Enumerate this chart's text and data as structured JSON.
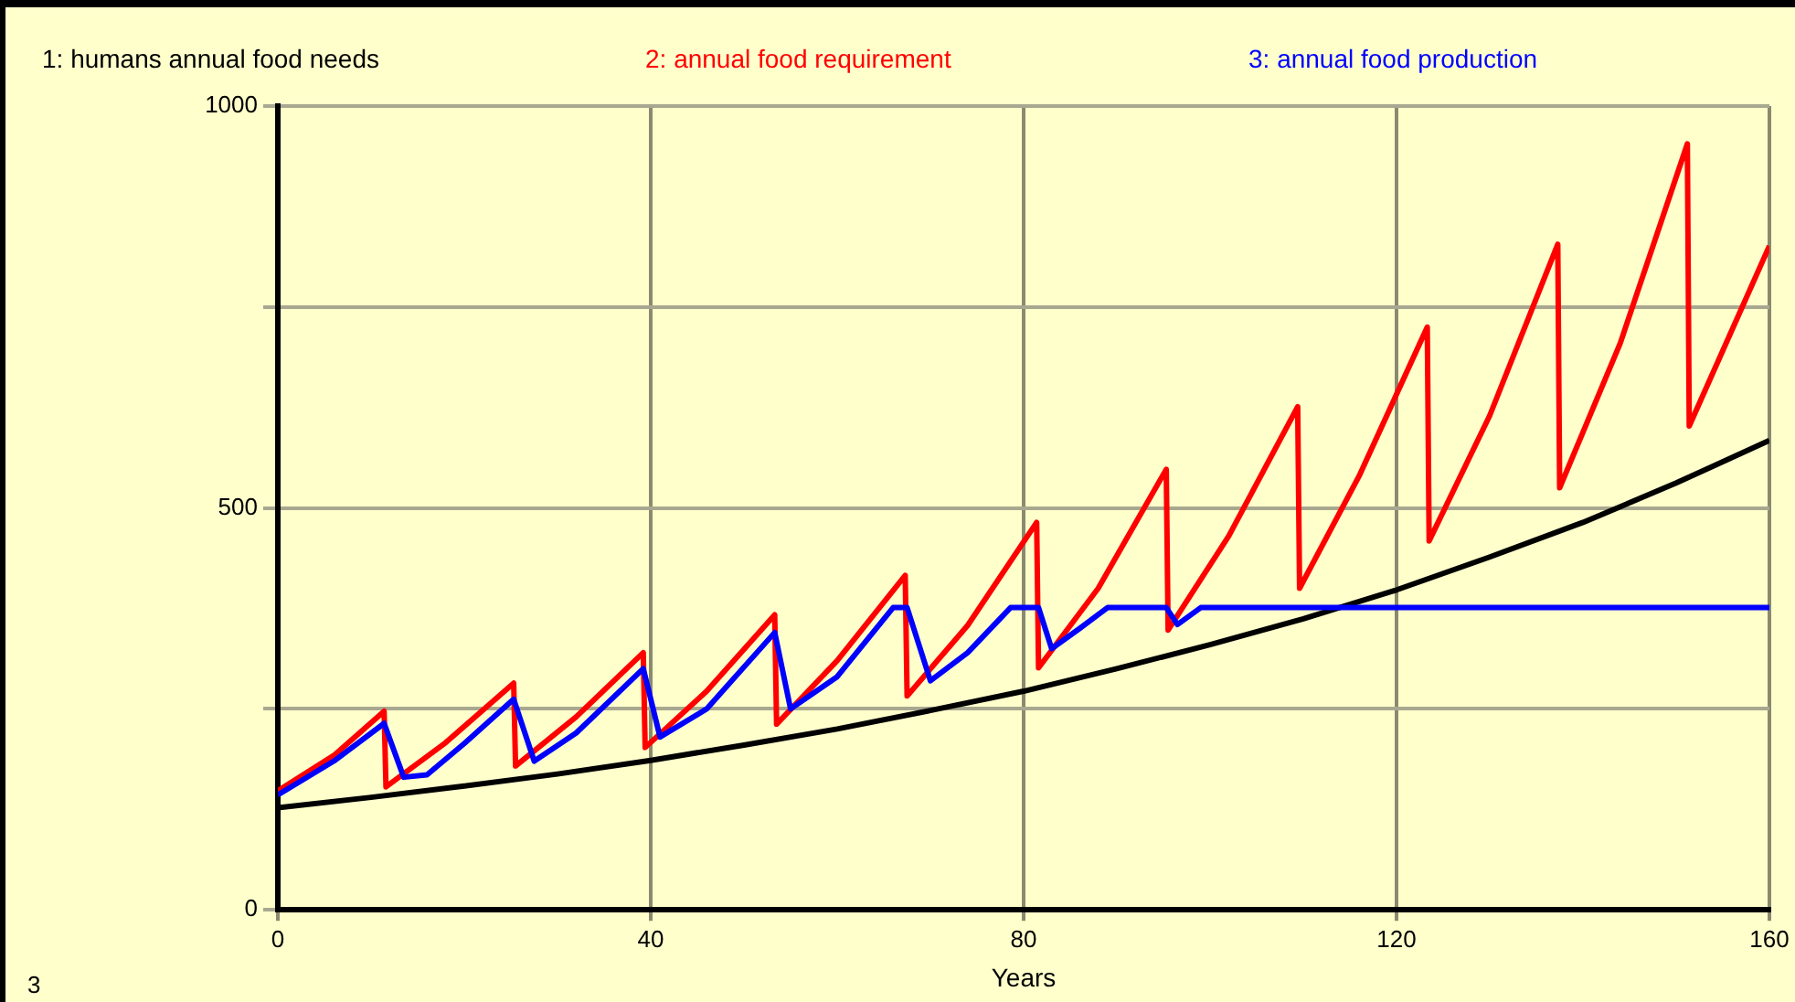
{
  "chart_data": {
    "type": "line",
    "xlabel": "Years",
    "legend": "top",
    "grid": true,
    "marker": "none",
    "line_style": "solid",
    "xlim": [
      0,
      160
    ],
    "xticks": [
      0,
      40,
      80,
      120,
      160
    ],
    "ylim": [
      0,
      1000
    ],
    "yticks": [
      0,
      {
        "value": 250,
        "label": null
      },
      500,
      {
        "value": 750,
        "label": null
      },
      1000
    ],
    "annotations": [
      "3"
    ],
    "series": [
      {
        "name": "1: humans annual food needs",
        "color": "#000000",
        "x": [
          0,
          10,
          20,
          30,
          40,
          50,
          60,
          70,
          80,
          90,
          100,
          110,
          120,
          130,
          140,
          150,
          160
        ],
        "values": [
          127,
          140,
          154,
          169,
          186,
          205,
          225,
          248,
          272,
          300,
          330,
          362,
          398,
          439,
          482,
          531,
          584
        ]
      },
      {
        "name": "2: annual food requirement",
        "color": "#ff0000",
        "x": [
          0,
          6,
          11.4,
          11.6,
          18,
          25.3,
          25.5,
          32,
          39.2,
          39.4,
          46,
          53.3,
          53.5,
          60,
          67.3,
          67.5,
          74,
          81.4,
          81.6,
          88,
          95.3,
          95.5,
          102,
          109.4,
          109.6,
          116,
          123.3,
          123.5,
          130,
          137.3,
          137.5,
          144,
          151.2,
          151.4,
          160
        ],
        "values": [
          148,
          192,
          247,
          153,
          208,
          282,
          179,
          240,
          320,
          202,
          272,
          367,
          231,
          310,
          416,
          266,
          354,
          482,
          301,
          400,
          548,
          348,
          465,
          626,
          400,
          540,
          725,
          459,
          615,
          828,
          525,
          705,
          953,
          602,
          826
        ]
      },
      {
        "name": "3: annual food production",
        "color": "#0000ff",
        "x": [
          0,
          6,
          11.4,
          13.5,
          16,
          20,
          25.3,
          27.5,
          32,
          39.2,
          41,
          46,
          53.3,
          55,
          60,
          66,
          67.5,
          70,
          74,
          78.6,
          81.6,
          83,
          86,
          89,
          95.3,
          96.5,
          99,
          160
        ],
        "values": [
          143,
          185,
          232,
          165,
          168,
          207,
          262,
          185,
          220,
          300,
          215,
          250,
          345,
          250,
          290,
          376,
          376,
          285,
          320,
          376,
          376,
          325,
          350,
          376,
          376,
          355,
          376,
          376
        ]
      }
    ]
  }
}
